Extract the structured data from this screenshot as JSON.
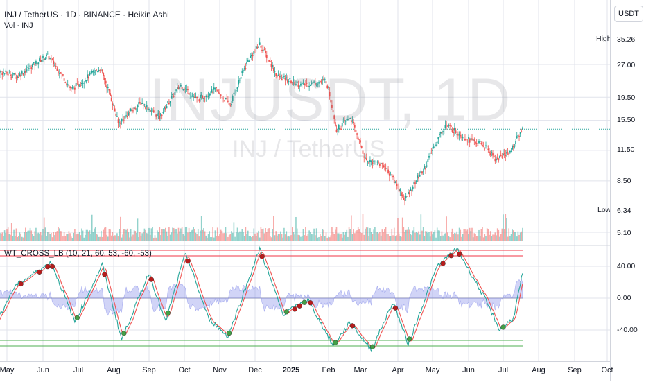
{
  "header": {
    "title": "INJ / TetherUS · 1D · BINANCE · Heikin Ashi",
    "volume_label": "Vol · INJ",
    "watermark_symbol": "INJUSDT, 1D",
    "watermark_name": "INJ / TetherUS"
  },
  "indicator": {
    "label": "WT_CROSS_LB (10, 21, 60, 53, -60, -53)"
  },
  "right_axis": {
    "currency_button": "USDT",
    "high_label": "High",
    "high_value": "35.26",
    "low_label": "Low",
    "low_value": "6.34",
    "price_ticks": [
      "27.00",
      "19.50",
      "15.50",
      "11.50",
      "8.50",
      "5.10"
    ],
    "osc_ticks": [
      "40.00",
      "0.00",
      "-40.00"
    ]
  },
  "time_axis": [
    "May",
    "Jun",
    "Jul",
    "Aug",
    "Sep",
    "Oct",
    "Nov",
    "Dec",
    "2025",
    "Feb",
    "Mar",
    "Apr",
    "May",
    "Jun",
    "Jul",
    "Aug",
    "Sep",
    "Oct"
  ],
  "chart_data": [
    {
      "type": "candlestick",
      "title": "INJ / TetherUS · 1D · BINANCE · Heikin Ashi",
      "y_ticks": [
        27.0,
        19.5,
        15.5,
        11.5,
        8.5,
        5.1
      ],
      "high": 35.26,
      "low": 6.34,
      "last_price_approx": 14.2,
      "log_scale": true,
      "x_anchor_dates": [
        "2024-05-01",
        "2024-06-01",
        "2024-07-01",
        "2024-08-01",
        "2024-09-01",
        "2024-10-01",
        "2024-11-01",
        "2024-12-01",
        "2025-01-01",
        "2025-02-01",
        "2025-03-01",
        "2025-04-01",
        "2025-05-01",
        "2025-06-01",
        "2025-07-01",
        "2025-08-01",
        "2025-09-01",
        "2025-10-01"
      ],
      "approx_close_by_date": [
        {
          "date": "2024-04-20",
          "close": 25.5
        },
        {
          "date": "2024-05-10",
          "close": 24.0
        },
        {
          "date": "2024-06-05",
          "close": 29.5
        },
        {
          "date": "2024-06-25",
          "close": 21.0
        },
        {
          "date": "2024-07-20",
          "close": 26.0
        },
        {
          "date": "2024-08-05",
          "close": 15.0
        },
        {
          "date": "2024-08-25",
          "close": 18.5
        },
        {
          "date": "2024-09-10",
          "close": 16.0
        },
        {
          "date": "2024-09-28",
          "close": 22.0
        },
        {
          "date": "2024-10-12",
          "close": 19.0
        },
        {
          "date": "2024-10-28",
          "close": 21.0
        },
        {
          "date": "2024-11-10",
          "close": 18.0
        },
        {
          "date": "2024-11-25",
          "close": 28.0
        },
        {
          "date": "2024-12-05",
          "close": 33.0
        },
        {
          "date": "2024-12-20",
          "close": 24.0
        },
        {
          "date": "2025-01-10",
          "close": 22.0
        },
        {
          "date": "2025-01-30",
          "close": 23.0
        },
        {
          "date": "2025-02-08",
          "close": 14.0
        },
        {
          "date": "2025-02-20",
          "close": 16.0
        },
        {
          "date": "2025-03-05",
          "close": 10.5
        },
        {
          "date": "2025-03-20",
          "close": 10.0
        },
        {
          "date": "2025-04-07",
          "close": 7.0
        },
        {
          "date": "2025-04-25",
          "close": 9.8
        },
        {
          "date": "2025-05-12",
          "close": 14.8
        },
        {
          "date": "2025-05-30",
          "close": 13.0
        },
        {
          "date": "2025-06-15",
          "close": 12.0
        },
        {
          "date": "2025-06-25",
          "close": 10.5
        },
        {
          "date": "2025-07-08",
          "close": 11.5
        },
        {
          "date": "2025-07-18",
          "close": 14.3
        }
      ],
      "colors": {
        "up": "#26a69a",
        "down": "#ef5350"
      }
    },
    {
      "type": "bar",
      "name": "Volume",
      "note_series": "volume bars under price, colored by candle direction"
    },
    {
      "type": "line",
      "title": "WT_CROSS_LB (10, 21, 60, 53, -60, -53)",
      "y_ticks": [
        40,
        0,
        -40
      ],
      "levels": {
        "ob1": 60,
        "ob2": 53,
        "os1": -60,
        "os2": -53
      },
      "approx_wt1_by_date": [
        {
          "date": "2024-04-20",
          "v": -35
        },
        {
          "date": "2024-05-08",
          "v": 15
        },
        {
          "date": "2024-06-08",
          "v": 45
        },
        {
          "date": "2024-06-28",
          "v": -30
        },
        {
          "date": "2024-07-22",
          "v": 42
        },
        {
          "date": "2024-08-08",
          "v": -52
        },
        {
          "date": "2024-09-01",
          "v": 32
        },
        {
          "date": "2024-09-15",
          "v": -30
        },
        {
          "date": "2024-10-02",
          "v": 57
        },
        {
          "date": "2024-10-22",
          "v": -25
        },
        {
          "date": "2024-11-08",
          "v": -48
        },
        {
          "date": "2024-12-05",
          "v": 62
        },
        {
          "date": "2024-12-25",
          "v": -20
        },
        {
          "date": "2025-01-15",
          "v": -2
        },
        {
          "date": "2025-02-05",
          "v": -60
        },
        {
          "date": "2025-02-20",
          "v": -30
        },
        {
          "date": "2025-03-10",
          "v": -65
        },
        {
          "date": "2025-03-28",
          "v": -5
        },
        {
          "date": "2025-04-10",
          "v": -58
        },
        {
          "date": "2025-05-05",
          "v": 40
        },
        {
          "date": "2025-05-22",
          "v": 62
        },
        {
          "date": "2025-06-15",
          "v": 0
        },
        {
          "date": "2025-06-28",
          "v": -40
        },
        {
          "date": "2025-07-10",
          "v": -25
        },
        {
          "date": "2025-07-20",
          "v": 45
        }
      ],
      "colors": {
        "wt1": "#26a69a",
        "wt2": "#ef5350",
        "hist": "#7b83e8",
        "ob": "#f23645",
        "os": "#4caf50"
      }
    }
  ]
}
